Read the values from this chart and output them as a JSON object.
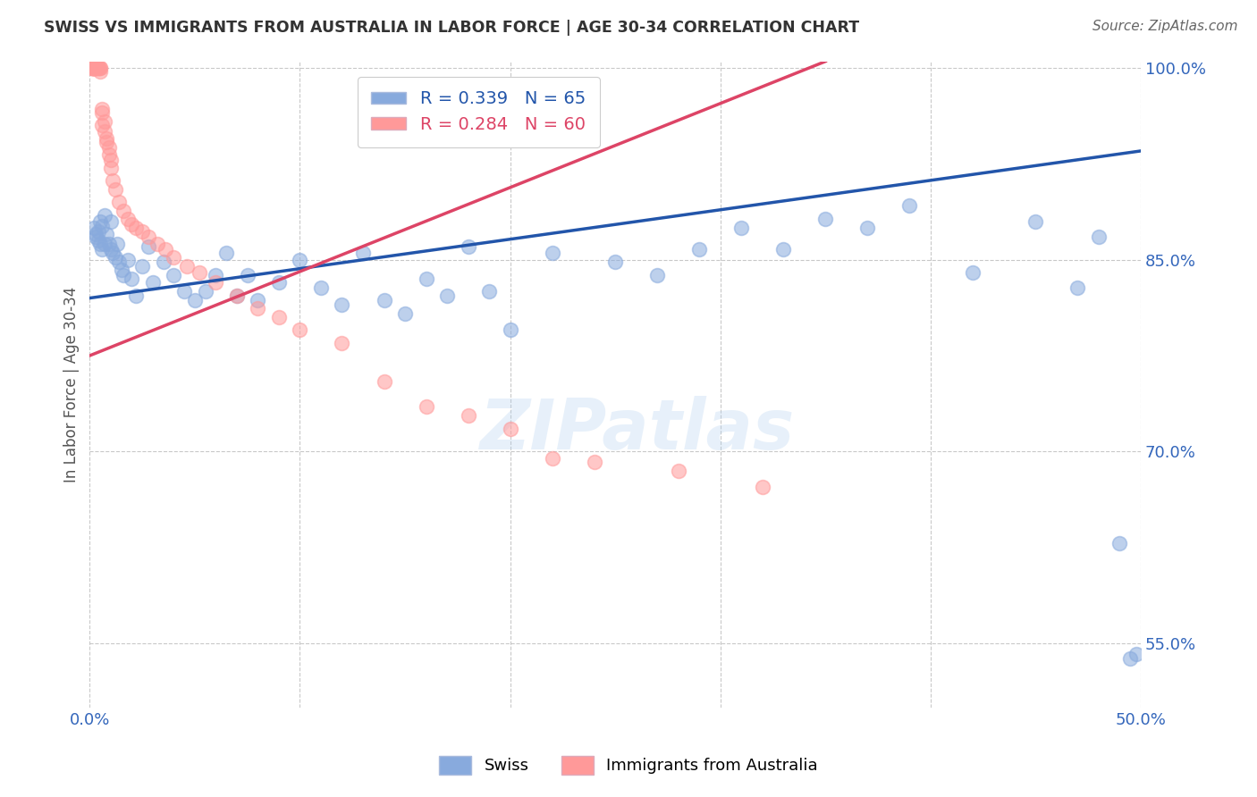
{
  "title": "SWISS VS IMMIGRANTS FROM AUSTRALIA IN LABOR FORCE | AGE 30-34 CORRELATION CHART",
  "source": "Source: ZipAtlas.com",
  "ylabel": "In Labor Force | Age 30-34",
  "xlim": [
    0.0,
    0.5
  ],
  "ylim": [
    0.5,
    1.005
  ],
  "blue_color": "#88AADD",
  "pink_color": "#FF9999",
  "blue_line_color": "#2255AA",
  "pink_line_color": "#DD4466",
  "blue_line_x0": 0.0,
  "blue_line_y0": 0.82,
  "blue_line_x1": 0.5,
  "blue_line_y1": 0.935,
  "pink_line_x0": 0.0,
  "pink_line_y0": 0.775,
  "pink_line_x1": 0.35,
  "pink_line_y1": 1.005,
  "legend_blue_r": "R = 0.339",
  "legend_blue_n": "N = 65",
  "legend_pink_r": "R = 0.284",
  "legend_pink_n": "N = 60",
  "legend_label_swiss": "Swiss",
  "legend_label_immigrants": "Immigrants from Australia",
  "watermark": "ZIPatlas",
  "blue_x": [
    0.002,
    0.003,
    0.003,
    0.004,
    0.004,
    0.005,
    0.005,
    0.006,
    0.006,
    0.007,
    0.007,
    0.008,
    0.009,
    0.01,
    0.01,
    0.011,
    0.012,
    0.013,
    0.014,
    0.015,
    0.016,
    0.018,
    0.02,
    0.022,
    0.025,
    0.028,
    0.03,
    0.035,
    0.04,
    0.045,
    0.05,
    0.055,
    0.06,
    0.065,
    0.07,
    0.075,
    0.08,
    0.09,
    0.1,
    0.11,
    0.12,
    0.13,
    0.14,
    0.15,
    0.16,
    0.17,
    0.18,
    0.19,
    0.2,
    0.22,
    0.25,
    0.27,
    0.29,
    0.31,
    0.33,
    0.35,
    0.37,
    0.39,
    0.42,
    0.45,
    0.47,
    0.48,
    0.49,
    0.495,
    0.498
  ],
  "blue_y": [
    0.875,
    0.87,
    0.868,
    0.872,
    0.865,
    0.88,
    0.862,
    0.876,
    0.858,
    0.885,
    0.862,
    0.87,
    0.862,
    0.858,
    0.88,
    0.855,
    0.852,
    0.862,
    0.848,
    0.842,
    0.838,
    0.85,
    0.835,
    0.822,
    0.845,
    0.86,
    0.832,
    0.848,
    0.838,
    0.825,
    0.818,
    0.825,
    0.838,
    0.855,
    0.822,
    0.838,
    0.818,
    0.832,
    0.85,
    0.828,
    0.815,
    0.855,
    0.818,
    0.808,
    0.835,
    0.822,
    0.86,
    0.825,
    0.795,
    0.855,
    0.848,
    0.838,
    0.858,
    0.875,
    0.858,
    0.882,
    0.875,
    0.892,
    0.84,
    0.88,
    0.828,
    0.868,
    0.628,
    0.538,
    0.542
  ],
  "pink_x": [
    0.001,
    0.001,
    0.001,
    0.001,
    0.001,
    0.002,
    0.002,
    0.002,
    0.002,
    0.002,
    0.002,
    0.003,
    0.003,
    0.003,
    0.003,
    0.004,
    0.004,
    0.004,
    0.005,
    0.005,
    0.005,
    0.006,
    0.006,
    0.006,
    0.007,
    0.007,
    0.008,
    0.008,
    0.009,
    0.009,
    0.01,
    0.01,
    0.011,
    0.012,
    0.014,
    0.016,
    0.018,
    0.02,
    0.022,
    0.025,
    0.028,
    0.032,
    0.036,
    0.04,
    0.046,
    0.052,
    0.06,
    0.07,
    0.08,
    0.09,
    0.1,
    0.12,
    0.14,
    0.16,
    0.18,
    0.2,
    0.22,
    0.24,
    0.28,
    0.32
  ],
  "pink_y": [
    1.0,
    1.0,
    1.0,
    1.0,
    1.0,
    1.0,
    1.0,
    1.0,
    1.0,
    1.0,
    1.0,
    1.0,
    1.0,
    1.0,
    1.0,
    1.0,
    1.0,
    1.0,
    0.997,
    1.0,
    1.0,
    0.965,
    0.968,
    0.955,
    0.958,
    0.95,
    0.945,
    0.942,
    0.938,
    0.932,
    0.928,
    0.922,
    0.912,
    0.905,
    0.895,
    0.888,
    0.882,
    0.878,
    0.875,
    0.872,
    0.868,
    0.862,
    0.858,
    0.852,
    0.845,
    0.84,
    0.832,
    0.822,
    0.812,
    0.805,
    0.795,
    0.785,
    0.755,
    0.735,
    0.728,
    0.718,
    0.695,
    0.692,
    0.685,
    0.672
  ]
}
